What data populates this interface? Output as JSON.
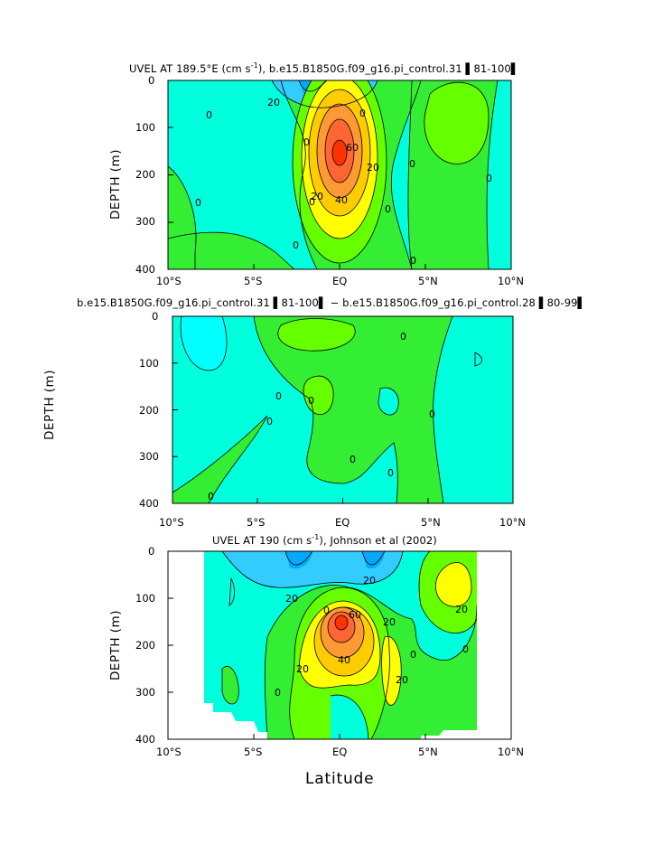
{
  "colors": {
    "cyan": "#00ffff",
    "aqua": "#00ffdd",
    "teal": "#00e5d8",
    "sky": "#33ccff",
    "blue": "#00aaff",
    "lightgreen": "#33ee33",
    "green": "#66ff00",
    "yellow": "#ffff00",
    "gold": "#ffcc00",
    "orange": "#ff9933",
    "darkorange": "#ff6633",
    "red": "#ff3300"
  },
  "chart_data": [
    {
      "type": "heatmap",
      "title": "UVEL AT 189.5°E (cm s",
      "title_sup": "-1",
      "title_rest": "), b.e15.B1850G.f09_g16.pi_control.31 ▌81-100▌",
      "ylabel": "DEPTH (m)",
      "xlabel": "",
      "xlim": [
        -10,
        10
      ],
      "ylim": [
        400,
        0
      ],
      "xticks": [
        "10°S",
        "5°S",
        "EQ",
        "5°N",
        "10°N"
      ],
      "yticks": [
        "0",
        "100",
        "200",
        "300",
        "400"
      ],
      "contour_labels": [
        "20",
        "0",
        "0",
        "0",
        "20",
        "0",
        "20",
        "40",
        "60",
        "0",
        "0",
        "0",
        "0"
      ],
      "max_value_cm_s": 80,
      "max_location": {
        "lat": 0,
        "depth_m": 160
      }
    },
    {
      "type": "heatmap",
      "title": "b.e15.B1850G.f09_g16.pi_control.31 ▌81-100▌ − b.e15.B1850G.f09_g16.pi_control.28 ▌80-99▌",
      "ylabel": "DEPTH (m)",
      "xlabel": "",
      "xlim": [
        -10,
        10
      ],
      "ylim": [
        400,
        0
      ],
      "xticks": [
        "10°S",
        "5°S",
        "EQ",
        "5°N",
        "10°N"
      ],
      "yticks": [
        "0",
        "100",
        "200",
        "300",
        "400"
      ],
      "contour_labels": [
        "0",
        "0",
        "0",
        "0",
        "0",
        "0",
        "0",
        "0"
      ]
    },
    {
      "type": "heatmap",
      "title": "UVEL AT 190 (cm s",
      "title_sup": "-1",
      "title_rest": "), Johnson et al (2002)",
      "ylabel": "DEPTH (m)",
      "xlabel": "Latitude",
      "xlim": [
        -10,
        10
      ],
      "ylim": [
        400,
        0
      ],
      "xticks": [
        "10°S",
        "5°S",
        "EQ",
        "5°N",
        "10°N"
      ],
      "yticks": [
        "0",
        "100",
        "200",
        "300",
        "400"
      ],
      "contour_labels": [
        "20",
        "20",
        "0",
        "20",
        "40",
        "60",
        "20",
        "20",
        "20",
        "0",
        "0",
        "0"
      ],
      "max_value_cm_s": 80,
      "max_location": {
        "lat": 0,
        "depth_m": 150
      }
    }
  ]
}
